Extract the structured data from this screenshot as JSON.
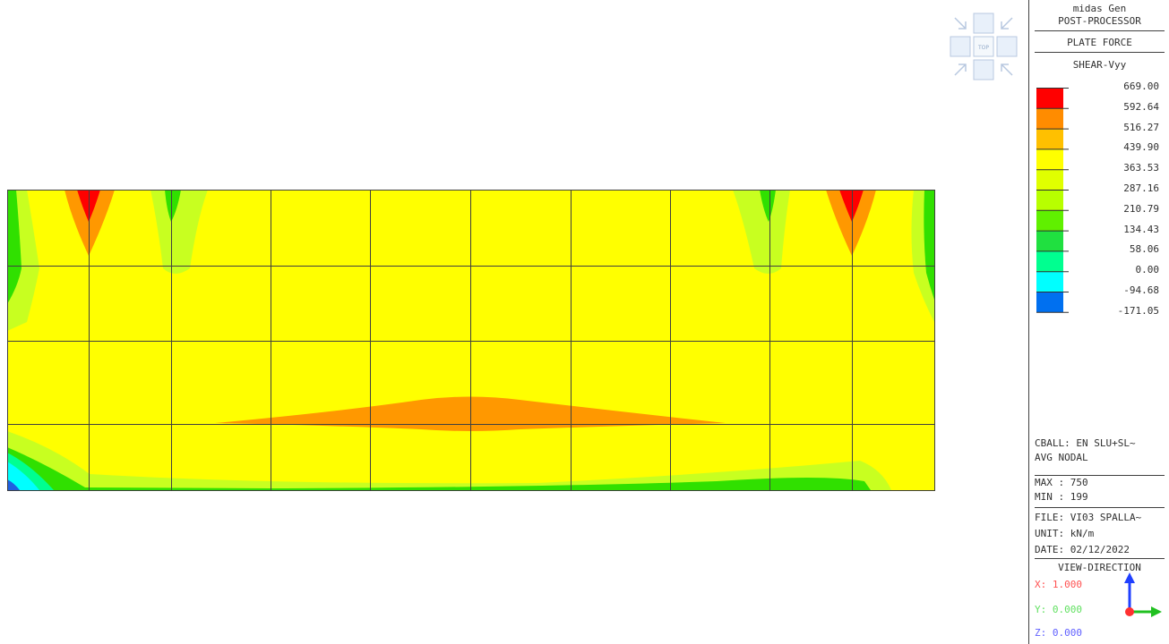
{
  "panel": {
    "app": "midas Gen",
    "module": "POST-PROCESSOR",
    "result_type": "PLATE FORCE",
    "component": "SHEAR-Vyy",
    "legend": [
      {
        "value": "669.00",
        "color": "#ff0000"
      },
      {
        "value": "592.64",
        "color": "#ff8c00"
      },
      {
        "value": "516.27",
        "color": "#ffc000"
      },
      {
        "value": "439.90",
        "color": "#ffff00"
      },
      {
        "value": "363.53",
        "color": "#e0ff00"
      },
      {
        "value": "287.16",
        "color": "#b8ff00"
      },
      {
        "value": "210.79",
        "color": "#60f000"
      },
      {
        "value": "134.43",
        "color": "#20e040"
      },
      {
        "value": "58.06",
        "color": "#00ff90"
      },
      {
        "value": "0.00",
        "color": "#00ffff"
      },
      {
        "value": "-94.68",
        "color": "#0070f0"
      },
      {
        "value": "-171.05",
        "color": null
      }
    ],
    "load_case": "CBALL: EN SLU+SL~",
    "avg_mode": "AVG NODAL",
    "max": "MAX : 750",
    "min": "MIN : 199",
    "file": "FILE: VI03 SPALLA~",
    "unit": "UNIT: kN/m",
    "date": "DATE: 02/12/2022",
    "view_direction_title": "VIEW-DIRECTION",
    "dir_x": "X: 1.000",
    "dir_y": "Y: 0.000",
    "dir_z": "Z: 0.000"
  },
  "view_cube": {
    "face_label": "TOP",
    "icon": "view-cube-icon"
  },
  "axis_triad": {
    "icon": "axis-triad-icon",
    "colors": {
      "x": "#ff3030",
      "y": "#20c020",
      "z": "#2040ff"
    }
  },
  "contour": {
    "colors": {
      "base": "#ffff00",
      "red": "#ff0000",
      "orange": "#ff9800",
      "green": "#30e000",
      "light_green": "#c8ff20",
      "teal": "#00ff90",
      "cyan": "#00ffff",
      "blue": "#2060e0"
    }
  }
}
